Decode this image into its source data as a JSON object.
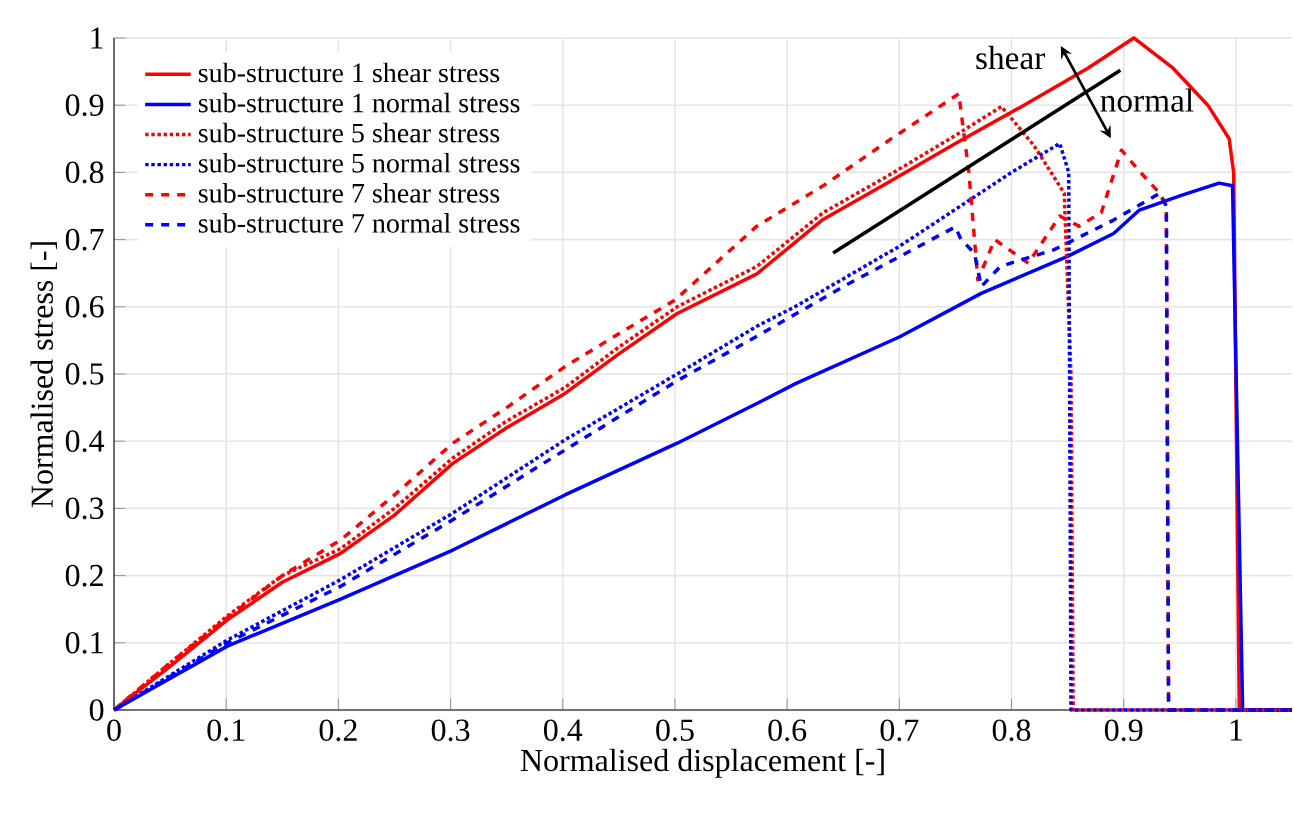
{
  "chart_data": {
    "type": "line",
    "xlabel": "Normalised displacement [-]",
    "ylabel": "Normalised stress [-]",
    "xlim": [
      0,
      1.05
    ],
    "ylim": [
      0,
      1
    ],
    "xticks": [
      0,
      0.1,
      0.2,
      0.3,
      0.4,
      0.5,
      0.6,
      0.7,
      0.8,
      0.9,
      1
    ],
    "yticks": [
      0,
      0.1,
      0.2,
      0.3,
      0.4,
      0.5,
      0.6,
      0.7,
      0.8,
      0.9,
      1
    ],
    "grid": true,
    "legend": "top left",
    "marker": "none",
    "annotations": [
      "shear",
      "normal"
    ],
    "series": [
      {
        "name": "sub-structure 1 shear stress",
        "color": "#ff0000",
        "line_style": "solid",
        "x": [
          0,
          0.05,
          0.101,
          0.15,
          0.202,
          0.25,
          0.302,
          0.35,
          0.402,
          0.45,
          0.502,
          0.573,
          0.632,
          0.69,
          0.75,
          0.808,
          0.868,
          0.909,
          0.944,
          0.975,
          0.994,
          0.998,
          1.003,
          1.05
        ],
        "values": [
          0,
          0.065,
          0.134,
          0.19,
          0.233,
          0.29,
          0.367,
          0.42,
          0.471,
          0.53,
          0.59,
          0.649,
          0.73,
          0.785,
          0.843,
          0.897,
          0.955,
          1.0,
          0.955,
          0.9,
          0.85,
          0.8,
          0,
          0
        ]
      },
      {
        "name": "sub-structure 1 normal stress",
        "color": "#0000ff",
        "line_style": "solid",
        "x": [
          0,
          0.101,
          0.202,
          0.302,
          0.402,
          0.502,
          0.573,
          0.608,
          0.7,
          0.773,
          0.85,
          0.891,
          0.914,
          0.95,
          0.985,
          0.997,
          1.006,
          1.05
        ],
        "values": [
          0,
          0.095,
          0.165,
          0.238,
          0.32,
          0.397,
          0.456,
          0.486,
          0.555,
          0.62,
          0.675,
          0.709,
          0.744,
          0.765,
          0.784,
          0.78,
          0,
          0
        ]
      },
      {
        "name": "sub-structure 5 shear stress",
        "color": "#ff0000",
        "line_style": "dotted",
        "x": [
          0,
          0.05,
          0.101,
          0.15,
          0.202,
          0.25,
          0.302,
          0.35,
          0.402,
          0.45,
          0.502,
          0.573,
          0.632,
          0.69,
          0.75,
          0.791,
          0.82,
          0.847,
          0.853,
          0.855,
          1.05
        ],
        "values": [
          0,
          0.07,
          0.14,
          0.2,
          0.24,
          0.3,
          0.375,
          0.43,
          0.48,
          0.54,
          0.6,
          0.66,
          0.74,
          0.795,
          0.855,
          0.898,
          0.84,
          0.769,
          0.5,
          0,
          0
        ]
      },
      {
        "name": "sub-structure 5 normal stress",
        "color": "#0000ff",
        "line_style": "dotted",
        "x": [
          0,
          0.101,
          0.202,
          0.302,
          0.402,
          0.502,
          0.573,
          0.608,
          0.7,
          0.8,
          0.843,
          0.851,
          0.853,
          1.05
        ],
        "values": [
          0,
          0.104,
          0.194,
          0.293,
          0.402,
          0.5,
          0.571,
          0.601,
          0.69,
          0.8,
          0.843,
          0.8,
          0,
          0
        ]
      },
      {
        "name": "sub-structure 7 shear stress",
        "color": "#ff0000",
        "line_style": "dashed",
        "x": [
          0,
          0.05,
          0.101,
          0.15,
          0.202,
          0.25,
          0.302,
          0.35,
          0.402,
          0.45,
          0.5,
          0.573,
          0.632,
          0.691,
          0.753,
          0.762,
          0.77,
          0.785,
          0.815,
          0.843,
          0.86,
          0.88,
          0.898,
          0.915,
          0.932,
          0.938,
          0.94,
          1.05
        ],
        "values": [
          0,
          0.07,
          0.137,
          0.2,
          0.253,
          0.32,
          0.397,
          0.45,
          0.511,
          0.56,
          0.61,
          0.72,
          0.78,
          0.848,
          0.917,
          0.8,
          0.64,
          0.7,
          0.665,
          0.735,
          0.72,
          0.74,
          0.833,
          0.8,
          0.769,
          0.75,
          0,
          0
        ]
      },
      {
        "name": "sub-structure 7 normal stress",
        "color": "#0000ff",
        "line_style": "dashed",
        "x": [
          0,
          0.101,
          0.202,
          0.302,
          0.402,
          0.502,
          0.573,
          0.65,
          0.75,
          0.755,
          0.767,
          0.773,
          0.79,
          0.838,
          0.891,
          0.932,
          0.938,
          0.94,
          1.05
        ],
        "values": [
          0,
          0.1,
          0.184,
          0.283,
          0.387,
          0.49,
          0.556,
          0.63,
          0.719,
          0.7,
          0.68,
          0.63,
          0.66,
          0.685,
          0.729,
          0.769,
          0.75,
          0,
          0
        ]
      },
      {
        "color": "#000000",
        "line_style": "solid",
        "x": [
          0.641,
          0.897
        ],
        "values": [
          0.68,
          0.952
        ]
      }
    ]
  }
}
